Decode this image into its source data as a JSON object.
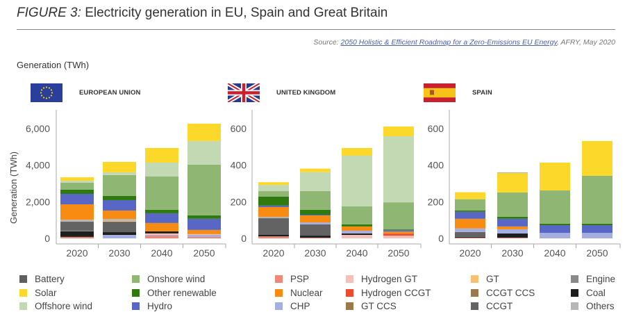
{
  "header": {
    "figure_label": "FIGURE 3:",
    "title": "Electricity generation in EU, Spain and Great Britain",
    "source_prefix": "Source: ",
    "source_link": "2050 Holistic & Efficient Roadmap for a Zero-Emissions EU Energy",
    "source_suffix": ", AFRY, May 2020",
    "generation_label": "Generation (TWh)"
  },
  "panels": [
    {
      "name": "EUROPEAN UNION",
      "flag": "eu-flag-icon"
    },
    {
      "name": "UNITED KINGDOM",
      "flag": "uk-flag-icon"
    },
    {
      "name": "SPAIN",
      "flag": "spain-flag-icon"
    }
  ],
  "legend": [
    {
      "label": "Battery",
      "color": "#5f5f5f"
    },
    {
      "label": "Solar",
      "color": "#fcd82a"
    },
    {
      "label": "Offshore wind",
      "color": "#c3d9b4"
    },
    {
      "label": "Onshore wind",
      "color": "#8fb672"
    },
    {
      "label": "Other renewable",
      "color": "#2e7a0e"
    },
    {
      "label": "Hydro",
      "color": "#5867c6"
    },
    {
      "label": "PSP",
      "color": "#f08878"
    },
    {
      "label": "Nuclear",
      "color": "#f88c12"
    },
    {
      "label": "CHP",
      "color": "#a4aee0"
    },
    {
      "label": "Hydrogen GT",
      "color": "#f4c0ba"
    },
    {
      "label": "Hydrogen CCGT",
      "color": "#ee4a30"
    },
    {
      "label": "GT CCS",
      "color": "#9a7a4a"
    },
    {
      "label": "GT",
      "color": "#f8c070"
    },
    {
      "label": "CCGT CCS",
      "color": "#9a7a4a"
    },
    {
      "label": "CCGT",
      "color": "#636363"
    },
    {
      "label": "Engine",
      "color": "#8a8a8a"
    },
    {
      "label": "Coal",
      "color": "#1e1e1e"
    },
    {
      "label": "Others",
      "color": "#b6b6b6"
    }
  ],
  "chart_data": [
    {
      "type": "bar",
      "stacked": true,
      "title": "EUROPEAN UNION",
      "ylabel": "Generation (TWh)",
      "xlabel": "",
      "categories": [
        "2020",
        "2030",
        "2040",
        "2050"
      ],
      "ylim": [
        0,
        7000
      ],
      "yticks": [
        0,
        2000,
        4000,
        6000
      ],
      "ytick_labels": [
        "0",
        "2,000",
        "4,000",
        "6,000"
      ],
      "grid": false,
      "series": [
        {
          "name": "PSP",
          "values": [
            80,
            0,
            150,
            80
          ]
        },
        {
          "name": "CHP",
          "values": [
            0,
            190,
            40,
            110
          ]
        },
        {
          "name": "Hydrogen GT",
          "values": [
            0,
            0,
            80,
            40
          ]
        },
        {
          "name": "Coal",
          "values": [
            300,
            150,
            110,
            0
          ]
        },
        {
          "name": "Engine",
          "values": [
            40,
            0,
            0,
            0
          ]
        },
        {
          "name": "CCGT",
          "values": [
            490,
            570,
            0,
            0
          ]
        },
        {
          "name": "GT",
          "values": [
            0,
            40,
            0,
            0
          ]
        },
        {
          "name": "Others",
          "values": [
            110,
            110,
            0,
            0
          ]
        },
        {
          "name": "Nuclear",
          "values": [
            840,
            460,
            460,
            230
          ]
        },
        {
          "name": "Hydro",
          "values": [
            570,
            570,
            530,
            610
          ]
        },
        {
          "name": "Other renewable",
          "values": [
            230,
            230,
            190,
            190
          ]
        },
        {
          "name": "Onshore wind",
          "values": [
            380,
            1140,
            1820,
            2770
          ]
        },
        {
          "name": "Offshore wind",
          "values": [
            110,
            150,
            760,
            1290
          ]
        },
        {
          "name": "Solar",
          "values": [
            190,
            570,
            800,
            950
          ]
        }
      ]
    },
    {
      "type": "bar",
      "stacked": true,
      "title": "UNITED KINGDOM",
      "ylabel": "",
      "xlabel": "",
      "categories": [
        "2020",
        "2030",
        "2040",
        "2050"
      ],
      "ylim": [
        0,
        700
      ],
      "yticks": [
        0,
        200,
        400,
        600
      ],
      "ytick_labels": [
        "0",
        "200",
        "400",
        "600"
      ],
      "grid": false,
      "series": [
        {
          "name": "PSP",
          "values": [
            11,
            4,
            0,
            0
          ]
        },
        {
          "name": "Hydrogen GT",
          "values": [
            0,
            0,
            19,
            15
          ]
        },
        {
          "name": "Hydrogen CCGT",
          "values": [
            0,
            0,
            0,
            11
          ]
        },
        {
          "name": "Coal",
          "values": [
            8,
            11,
            8,
            0
          ]
        },
        {
          "name": "CCGT",
          "values": [
            91,
            61,
            0,
            0
          ]
        },
        {
          "name": "CHP",
          "values": [
            0,
            11,
            15,
            0
          ]
        },
        {
          "name": "Others",
          "values": [
            8,
            0,
            0,
            0
          ]
        },
        {
          "name": "Nuclear",
          "values": [
            53,
            38,
            23,
            11
          ]
        },
        {
          "name": "Hydro",
          "values": [
            8,
            4,
            0,
            8
          ]
        },
        {
          "name": "Other renewable",
          "values": [
            49,
            27,
            11,
            4
          ]
        },
        {
          "name": "Onshore wind",
          "values": [
            30,
            103,
            99,
            148
          ]
        },
        {
          "name": "Offshore wind",
          "values": [
            34,
            103,
            277,
            361
          ]
        },
        {
          "name": "Solar",
          "values": [
            15,
            19,
            42,
            53
          ]
        }
      ]
    },
    {
      "type": "bar",
      "stacked": true,
      "title": "SPAIN",
      "ylabel": "",
      "xlabel": "",
      "categories": [
        "2020",
        "2030",
        "2040",
        "2050"
      ],
      "ylim": [
        0,
        700
      ],
      "yticks": [
        0,
        200,
        400,
        600
      ],
      "ytick_labels": [
        "0",
        "200",
        "400",
        "600"
      ],
      "grid": false,
      "series": [
        {
          "name": "PSP",
          "values": [
            4,
            4,
            0,
            0
          ]
        },
        {
          "name": "Coal",
          "values": [
            4,
            23,
            0,
            0
          ]
        },
        {
          "name": "CCGT",
          "values": [
            27,
            0,
            0,
            0
          ]
        },
        {
          "name": "CHP",
          "values": [
            19,
            23,
            30,
            30
          ]
        },
        {
          "name": "Nuclear",
          "values": [
            53,
            15,
            0,
            0
          ]
        },
        {
          "name": "Hydro",
          "values": [
            38,
            42,
            42,
            42
          ]
        },
        {
          "name": "Other renewable",
          "values": [
            8,
            11,
            8,
            8
          ]
        },
        {
          "name": "Onshore wind",
          "values": [
            61,
            133,
            182,
            262
          ]
        },
        {
          "name": "Solar",
          "values": [
            38,
            106,
            152,
            190
          ]
        },
        {
          "name": "Others",
          "values": [
            0,
            4,
            0,
            0
          ]
        }
      ]
    }
  ]
}
